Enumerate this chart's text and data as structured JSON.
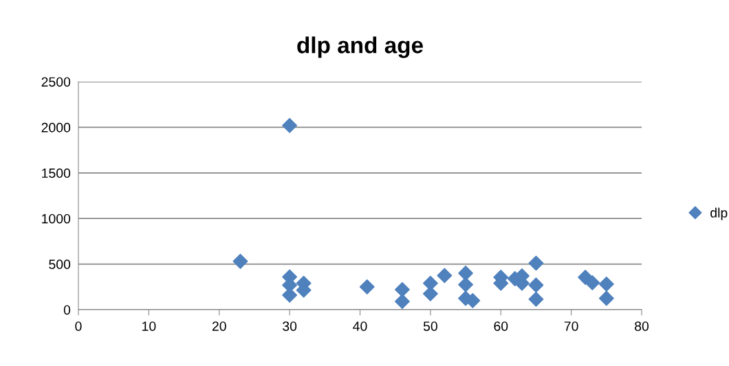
{
  "chart_data": {
    "type": "scatter",
    "title": "dlp and age",
    "marker": "diamond",
    "grid": "y",
    "legend": "right",
    "xlim": [
      0,
      80
    ],
    "xticks": [
      0,
      10,
      20,
      30,
      40,
      50,
      60,
      70,
      80
    ],
    "ylim": [
      0,
      2500
    ],
    "yticks": [
      0,
      500,
      1000,
      1500,
      2000,
      2500
    ],
    "series": [
      {
        "name": "dlp",
        "color": "#4f81bd",
        "x": [
          23,
          30,
          30,
          30,
          30,
          32,
          32,
          41,
          46,
          46,
          50,
          50,
          52,
          55,
          55,
          55,
          56,
          60,
          60,
          62,
          63,
          63,
          65,
          65,
          65,
          72,
          73,
          75,
          75
        ],
        "values": [
          530,
          2020,
          360,
          270,
          160,
          290,
          215,
          250,
          220,
          90,
          290,
          175,
          375,
          400,
          275,
          125,
          100,
          355,
          290,
          340,
          370,
          290,
          510,
          270,
          115,
          355,
          295,
          280,
          125
        ]
      }
    ]
  }
}
